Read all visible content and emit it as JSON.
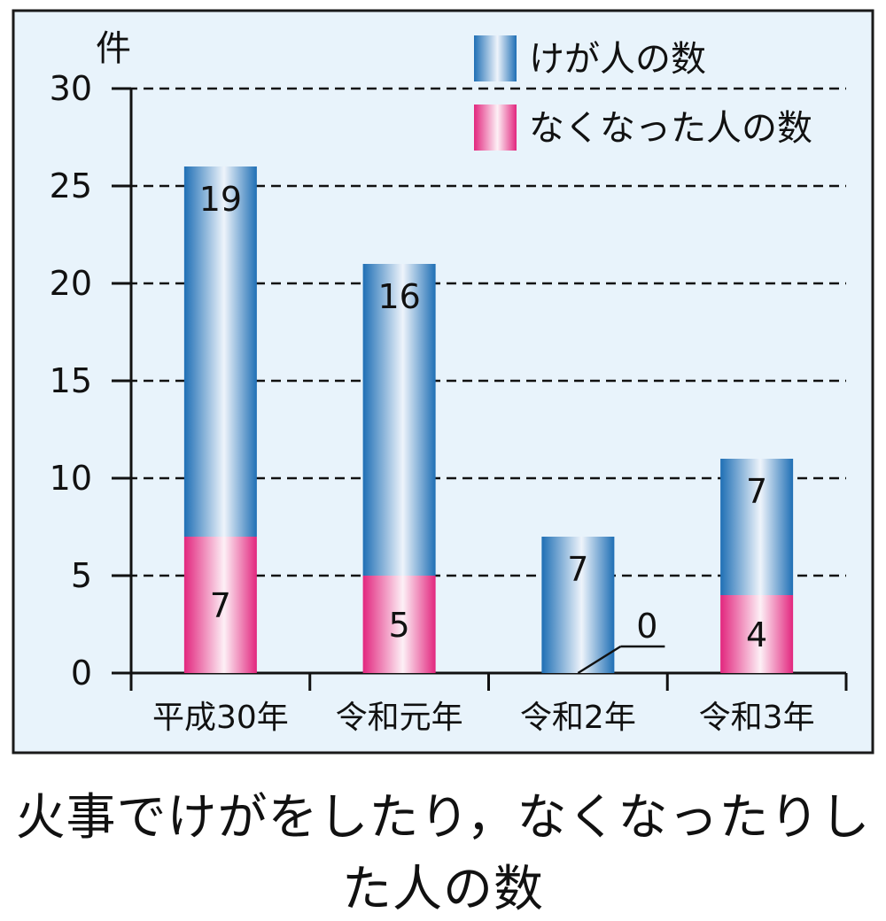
{
  "caption": "火事でけがをしたり，なくなったりした人の数",
  "colors": {
    "background": "#e8f3fb",
    "frame": "#1a1a1a",
    "injured": "#1f6fb5",
    "deaths": "#e2267e"
  },
  "chart_data": {
    "type": "bar",
    "stacked": true,
    "categories": [
      "平成30年",
      "令和元年",
      "令和2年",
      "令和3年"
    ],
    "series": [
      {
        "name": "なくなった人の数",
        "values": [
          7,
          5,
          0,
          4
        ]
      },
      {
        "name": "けが人の数",
        "values": [
          19,
          16,
          7,
          7
        ]
      }
    ],
    "ylabel": "件",
    "ylim": [
      0,
      30
    ],
    "yticks": [
      0,
      5,
      10,
      15,
      20,
      25,
      30
    ],
    "grid": true,
    "legend": "top-right"
  }
}
